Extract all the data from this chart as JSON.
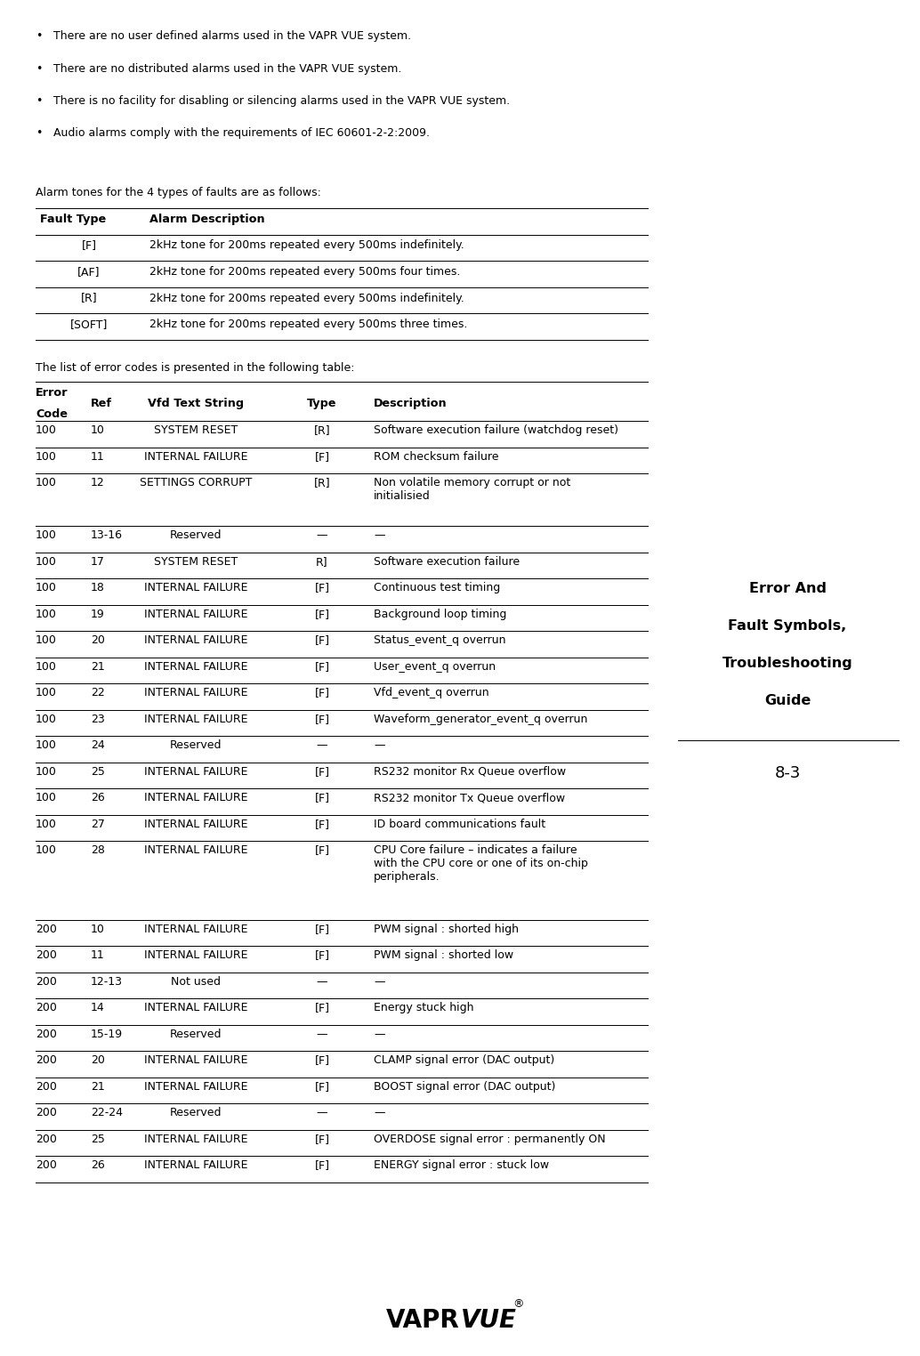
{
  "bg_color": "#ffffff",
  "bullets": [
    "There are no user defined alarms used in the VAPR VUE system.",
    "There are no distributed alarms used in the VAPR VUE system.",
    "There is no facility for disabling or silencing alarms used in the VAPR VUE system.",
    "Audio alarms comply with the requirements of IEC 60601-2-2:2009."
  ],
  "alarm_intro": "Alarm tones for the 4 types of faults are as follows:",
  "alarm_col1_header": "Fault Type",
  "alarm_col2_header": "Alarm Description",
  "alarm_rows": [
    [
      "[F]",
      "2kHz tone for 200ms repeated every 500ms indefinitely."
    ],
    [
      "[AF]",
      "2kHz tone for 200ms repeated every 500ms four times."
    ],
    [
      "[R]",
      "2kHz tone for 200ms repeated every 500ms indefinitely."
    ],
    [
      "[SOFT]",
      "2kHz tone for 200ms repeated every 500ms three times."
    ]
  ],
  "error_intro": "The list of error codes is presented in the following table:",
  "error_rows": [
    [
      "100",
      "10",
      "SYSTEM RESET",
      "[R]",
      "Software execution failure (watchdog reset)"
    ],
    [
      "100",
      "11",
      "INTERNAL FAILURE",
      "[F]",
      "ROM checksum failure"
    ],
    [
      "100",
      "12",
      "SETTINGS CORRUPT",
      "[R]",
      "Non volatile memory corrupt or not\ninitialisied"
    ],
    [
      "100",
      "13-16",
      "Reserved",
      "—",
      "—"
    ],
    [
      "100",
      "17",
      "SYSTEM RESET",
      "R]",
      "Software execution failure"
    ],
    [
      "100",
      "18",
      "INTERNAL FAILURE",
      "[F]",
      "Continuous test timing"
    ],
    [
      "100",
      "19",
      "INTERNAL FAILURE",
      "[F]",
      "Background loop timing"
    ],
    [
      "100",
      "20",
      "INTERNAL FAILURE",
      "[F]",
      "Status_event_q overrun"
    ],
    [
      "100",
      "21",
      "INTERNAL FAILURE",
      "[F]",
      "User_event_q overrun"
    ],
    [
      "100",
      "22",
      "INTERNAL FAILURE",
      "[F]",
      "Vfd_event_q overrun"
    ],
    [
      "100",
      "23",
      "INTERNAL FAILURE",
      "[F]",
      "Waveform_generator_event_q overrun"
    ],
    [
      "100",
      "24",
      "Reserved",
      "—",
      "—"
    ],
    [
      "100",
      "25",
      "INTERNAL FAILURE",
      "[F]",
      "RS232 monitor Rx Queue overflow"
    ],
    [
      "100",
      "26",
      "INTERNAL FAILURE",
      "[F]",
      "RS232 monitor Tx Queue overflow"
    ],
    [
      "100",
      "27",
      "INTERNAL FAILURE",
      "[F]",
      "ID board communications fault"
    ],
    [
      "100",
      "28",
      "INTERNAL FAILURE",
      "[F]",
      "CPU Core failure – indicates a failure\nwith the CPU core or one of its on-chip\nperipherals."
    ],
    [
      "200",
      "10",
      "INTERNAL FAILURE",
      "[F]",
      "PWM signal : shorted high"
    ],
    [
      "200",
      "11",
      "INTERNAL FAILURE",
      "[F]",
      "PWM signal : shorted low"
    ],
    [
      "200",
      "12-13",
      "Not used",
      "—",
      "—"
    ],
    [
      "200",
      "14",
      "INTERNAL FAILURE",
      "[F]",
      "Energy stuck high"
    ],
    [
      "200",
      "15-19",
      "Reserved",
      "—",
      "—"
    ],
    [
      "200",
      "20",
      "INTERNAL FAILURE",
      "[F]",
      "CLAMP signal error (DAC output)"
    ],
    [
      "200",
      "21",
      "INTERNAL FAILURE",
      "[F]",
      "BOOST signal error (DAC output)"
    ],
    [
      "200",
      "22-24",
      "Reserved",
      "—",
      "—"
    ],
    [
      "200",
      "25",
      "INTERNAL FAILURE",
      "[F]",
      "OVERDOSE signal error : permanently ON"
    ],
    [
      "200",
      "26",
      "INTERNAL FAILURE",
      "[F]",
      "ENERGY signal error : stuck low"
    ]
  ],
  "sidebar_lines": [
    "Error And",
    "Fault Symbols,",
    "Troubleshooting",
    "Guide"
  ],
  "sidebar_page": "8-3",
  "footer_vapr": "VAPR",
  "footer_vue": "VUE",
  "footer_reg": "®"
}
